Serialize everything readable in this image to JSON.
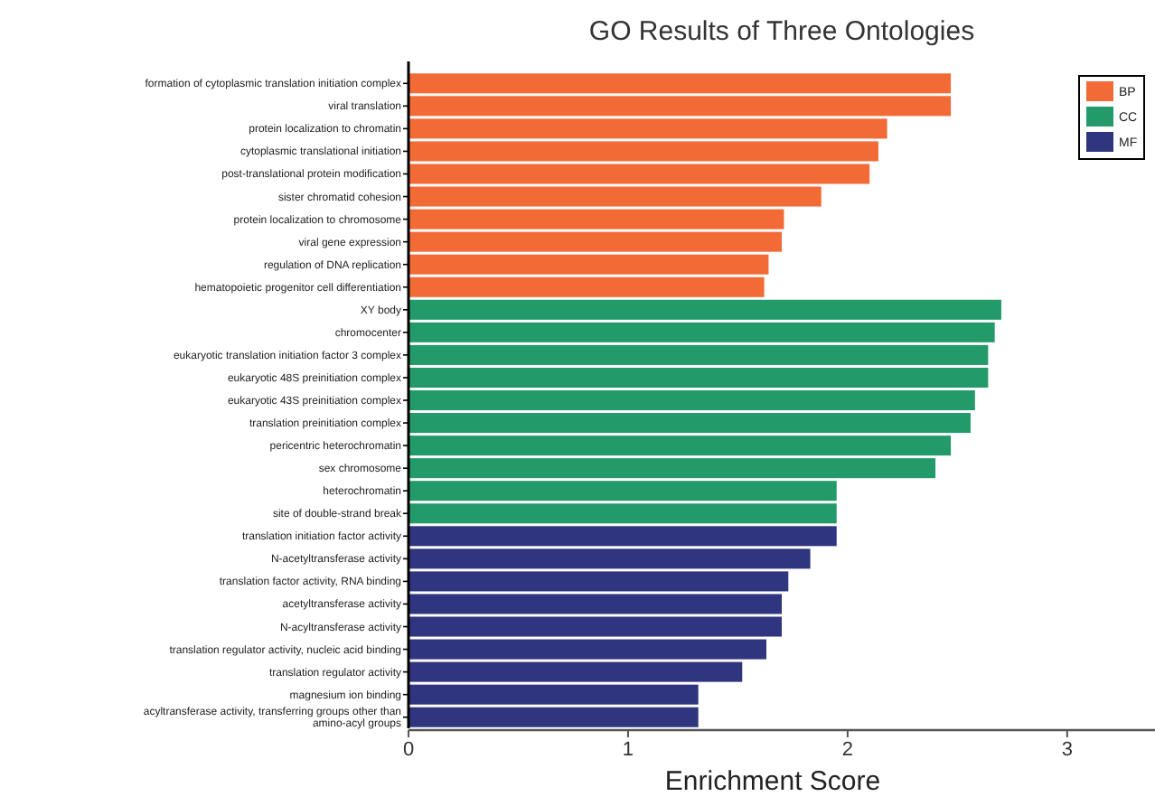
{
  "chart_data": {
    "type": "bar",
    "orientation": "horizontal",
    "title": "GO Results of Three Ontologies",
    "xlabel": "Enrichment Score",
    "xlim": [
      0,
      3.4
    ],
    "xticks": [
      0,
      1,
      2,
      3
    ],
    "legend": "top right",
    "grid": false,
    "categories": [
      "formation of cytoplasmic translation initiation complex",
      "viral translation",
      "protein localization to chromatin",
      "cytoplasmic translational initiation",
      "post-translational protein modification",
      "sister chromatid cohesion",
      "protein localization to chromosome",
      "viral gene expression",
      "regulation of DNA replication",
      "hematopoietic progenitor cell differentiation",
      "XY body",
      "chromocenter",
      "eukaryotic translation initiation factor 3 complex",
      "eukaryotic 48S preinitiation complex",
      "eukaryotic 43S preinitiation complex",
      "translation preinitiation complex",
      "pericentric heterochromatin",
      "sex chromosome",
      "heterochromatin",
      "site of double-strand break",
      "translation initiation factor activity",
      "N-acetyltransferase activity",
      "translation factor activity, RNA binding",
      "acetyltransferase activity",
      "N-acyltransferase activity",
      "translation regulator activity, nucleic acid binding",
      "translation regulator activity",
      "magnesium ion binding",
      "acyltransferase activity, transferring groups other than amino-acyl groups"
    ],
    "series": [
      {
        "name": "BP",
        "color": "#f26a36",
        "values": [
          2.47,
          2.47,
          2.18,
          2.14,
          2.1,
          1.88,
          1.71,
          1.7,
          1.64,
          1.62,
          null,
          null,
          null,
          null,
          null,
          null,
          null,
          null,
          null,
          null,
          null,
          null,
          null,
          null,
          null,
          null,
          null,
          null,
          null
        ]
      },
      {
        "name": "CC",
        "color": "#229a69",
        "values": [
          null,
          null,
          null,
          null,
          null,
          null,
          null,
          null,
          null,
          null,
          2.7,
          2.67,
          2.64,
          2.64,
          2.58,
          2.56,
          2.47,
          2.4,
          1.95,
          1.95,
          null,
          null,
          null,
          null,
          null,
          null,
          null,
          null,
          null
        ]
      },
      {
        "name": "MF",
        "color": "#2f357f",
        "values": [
          null,
          null,
          null,
          null,
          null,
          null,
          null,
          null,
          null,
          null,
          null,
          null,
          null,
          null,
          null,
          null,
          null,
          null,
          null,
          null,
          1.95,
          1.83,
          1.73,
          1.7,
          1.7,
          1.63,
          1.52,
          1.32,
          1.32
        ]
      }
    ]
  }
}
